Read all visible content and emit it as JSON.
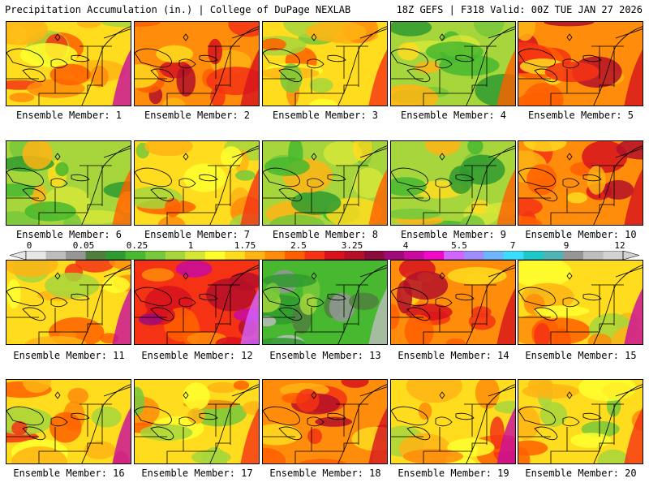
{
  "header": {
    "left_title": "Precipitation Accumulation (in.) | College of DuPage NEXLAB",
    "right_title": "18Z GEFS | F318 Valid: 00Z TUE JAN 27 2026"
  },
  "colorbar": {
    "labels": [
      "0",
      "0.05",
      "0.25",
      "1",
      "1.75",
      "2.5",
      "3.25",
      "4",
      "5.5",
      "7",
      "9",
      "12"
    ],
    "colors": [
      "#e6e6e6",
      "#bdbdbd",
      "#969696",
      "#4f7f3f",
      "#2f9a2f",
      "#47b82f",
      "#77c83a",
      "#a6d63c",
      "#d6e637",
      "#ffff2e",
      "#ffdc1e",
      "#ffb414",
      "#ff8c0a",
      "#ff5f00",
      "#f53214",
      "#d7121e",
      "#b40f28",
      "#8c0a3c",
      "#a00a78",
      "#c80aa0",
      "#f00ac8",
      "#d264ff",
      "#a08cff",
      "#6eb4ff",
      "#3cdcff",
      "#1ec8c8",
      "#50b4b4",
      "#969696",
      "#bebebe",
      "#d2d2d2"
    ]
  },
  "members": [
    {
      "label": "Ensemble Member: 1",
      "scheme": "warm"
    },
    {
      "label": "Ensemble Member: 2",
      "scheme": "hot"
    },
    {
      "label": "Ensemble Member: 3",
      "scheme": "mid"
    },
    {
      "label": "Ensemble Member: 4",
      "scheme": "green"
    },
    {
      "label": "Ensemble Member: 5",
      "scheme": "hot"
    },
    {
      "label": "Ensemble Member: 6",
      "scheme": "green"
    },
    {
      "label": "Ensemble Member: 7",
      "scheme": "mid"
    },
    {
      "label": "Ensemble Member: 8",
      "scheme": "green"
    },
    {
      "label": "Ensemble Member: 9",
      "scheme": "green"
    },
    {
      "label": "Ensemble Member: 10",
      "scheme": "hot"
    },
    {
      "label": "Ensemble Member: 11",
      "scheme": "warm"
    },
    {
      "label": "Ensemble Member: 12",
      "scheme": "extreme"
    },
    {
      "label": "Ensemble Member: 13",
      "scheme": "dry"
    },
    {
      "label": "Ensemble Member: 14",
      "scheme": "hot"
    },
    {
      "label": "Ensemble Member: 15",
      "scheme": "warm"
    },
    {
      "label": "Ensemble Member: 16",
      "scheme": "warm"
    },
    {
      "label": "Ensemble Member: 17",
      "scheme": "mid"
    },
    {
      "label": "Ensemble Member: 18",
      "scheme": "hot"
    },
    {
      "label": "Ensemble Member: 19",
      "scheme": "warm"
    },
    {
      "label": "Ensemble Member: 20",
      "scheme": "mid"
    }
  ]
}
